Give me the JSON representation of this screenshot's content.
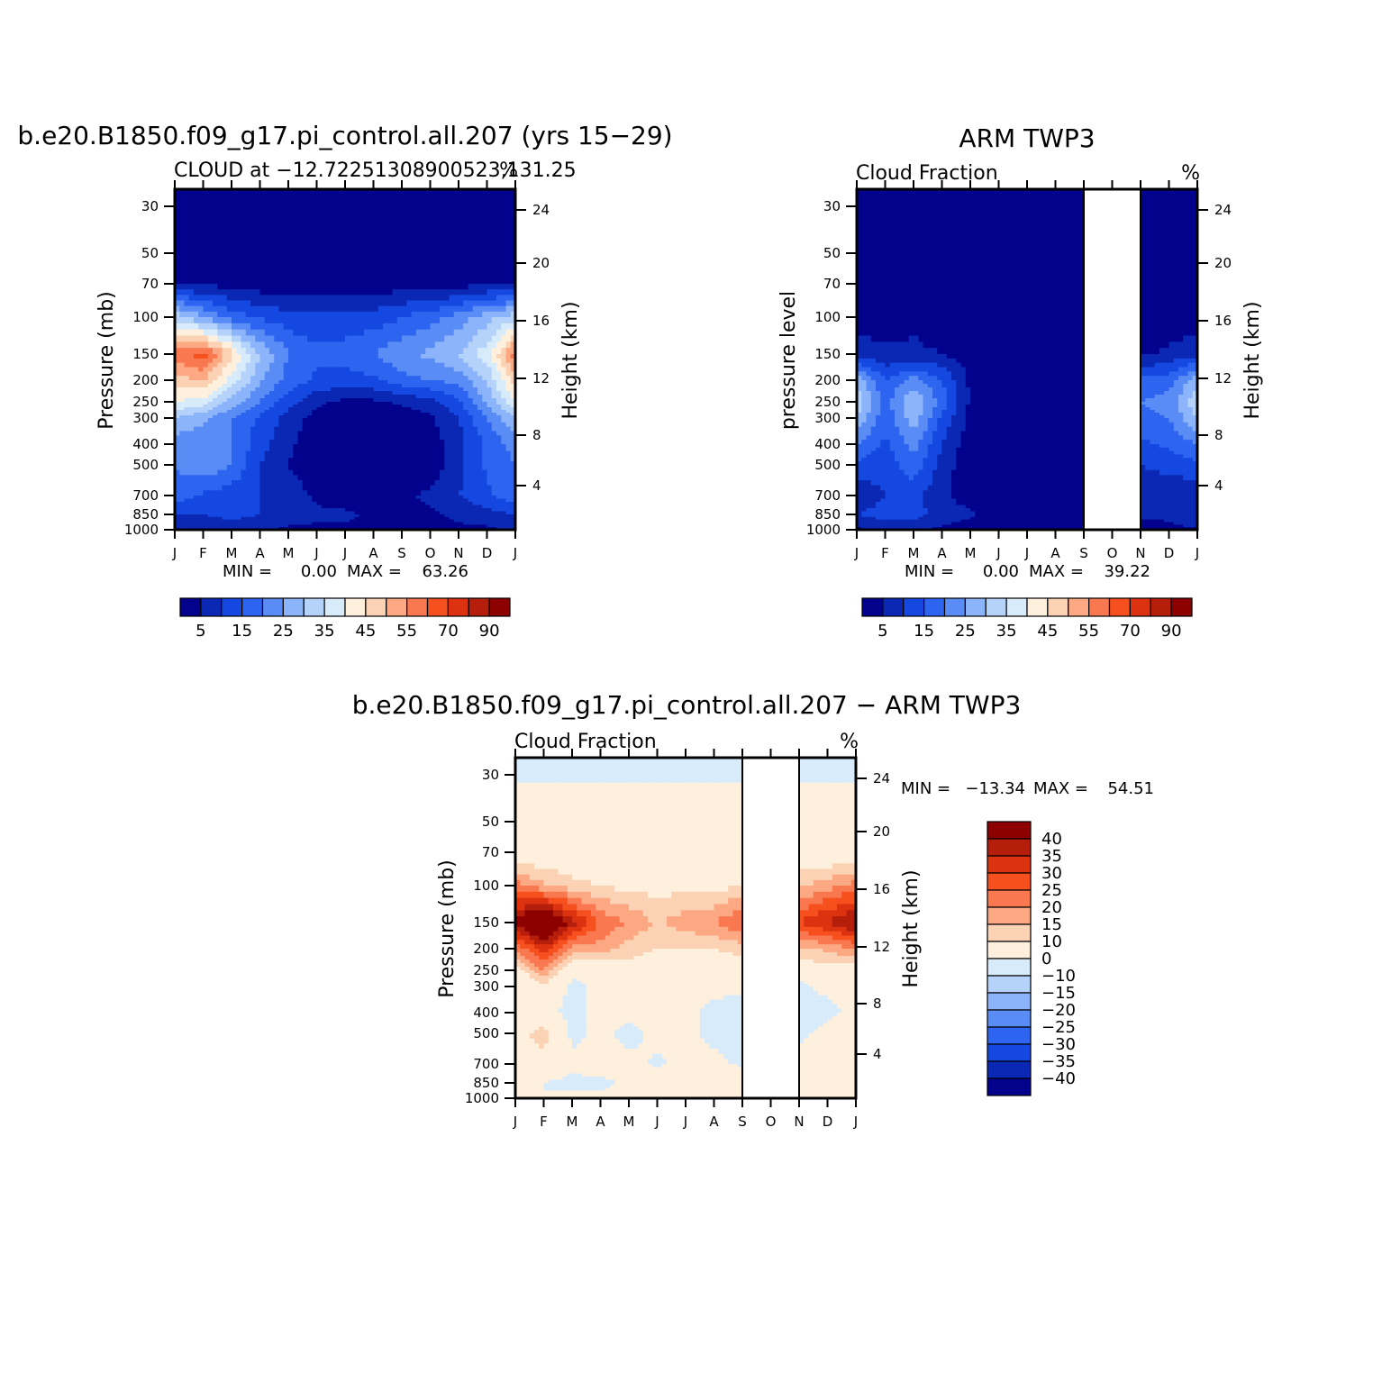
{
  "chart_data": [
    {
      "type": "heatmap",
      "title": "b.e20.B1850.f09_g17.pi_control.all.207 (yrs 15−29)",
      "subtitle_left": "CLOUD at −12.72251308900523,131.25",
      "subtitle_right": "%",
      "stats": {
        "min_label": "MIN =",
        "min": "0.00",
        "max_label": "MAX =",
        "max": "63.26"
      },
      "months": [
        "J",
        "F",
        "M",
        "A",
        "M",
        "J",
        "J",
        "A",
        "S",
        "O",
        "N",
        "D",
        "J"
      ],
      "pressure_ticks": [
        "30",
        "50",
        "70",
        "100",
        "150",
        "200",
        "250",
        "300",
        "400",
        "500",
        "700",
        "850",
        "1000"
      ],
      "height_ticks": [
        "24",
        "20",
        "16",
        "12",
        "8",
        "4"
      ],
      "ylabel": "Pressure (mb)",
      "ylabel_right": "Height (km)",
      "colorbar_labels": [
        "5",
        "15",
        "25",
        "35",
        "45",
        "55",
        "70",
        "90"
      ],
      "colors": [
        "#02028c",
        "#0a28b4",
        "#1448e0",
        "#2d64f0",
        "#5a8cf5",
        "#8cb4fa",
        "#b4d2fa",
        "#d7ebfa",
        "#fff0de",
        "#fcd2b4",
        "#fca882",
        "#fa7850",
        "#f5501e",
        "#dc3210",
        "#b41e0a",
        "#8c0000"
      ],
      "values": [
        [
          0,
          0,
          0,
          0,
          0,
          0,
          0,
          0,
          0,
          0,
          0,
          0,
          0
        ],
        [
          0,
          0,
          0,
          0,
          0,
          0,
          0,
          0,
          0,
          0,
          0,
          0,
          0
        ],
        [
          5,
          4,
          3,
          2,
          2,
          2,
          2,
          2,
          2,
          2,
          3,
          4,
          5
        ],
        [
          33,
          25,
          18,
          14,
          12,
          12,
          12,
          12,
          15,
          18,
          22,
          28,
          33
        ],
        [
          58,
          63,
          46,
          30,
          20,
          16,
          17,
          20,
          24,
          26,
          30,
          38,
          58
        ],
        [
          48,
          50,
          38,
          26,
          18,
          14,
          13,
          14,
          18,
          20,
          22,
          30,
          48
        ],
        [
          40,
          38,
          28,
          20,
          12,
          6,
          4,
          4,
          6,
          8,
          14,
          26,
          40
        ],
        [
          30,
          26,
          20,
          14,
          8,
          3,
          2,
          2,
          2,
          4,
          10,
          20,
          30
        ],
        [
          22,
          22,
          20,
          12,
          6,
          2,
          1,
          1,
          1,
          2,
          8,
          16,
          22
        ],
        [
          20,
          24,
          20,
          10,
          5,
          1,
          1,
          1,
          1,
          2,
          8,
          16,
          20
        ],
        [
          18,
          14,
          12,
          10,
          8,
          4,
          2,
          2,
          4,
          6,
          10,
          14,
          18
        ],
        [
          10,
          10,
          12,
          10,
          8,
          6,
          6,
          4,
          4,
          4,
          6,
          8,
          10
        ],
        [
          6,
          6,
          6,
          6,
          4,
          4,
          4,
          2,
          2,
          2,
          4,
          4,
          6
        ]
      ]
    },
    {
      "type": "heatmap",
      "title": "ARM TWP3",
      "subtitle_left": "Cloud Fraction",
      "subtitle_right": "%",
      "stats": {
        "min_label": "MIN =",
        "min": "0.00",
        "max_label": "MAX =",
        "max": "39.22"
      },
      "months": [
        "J",
        "F",
        "M",
        "A",
        "M",
        "J",
        "J",
        "A",
        "S",
        "O",
        "N",
        "D",
        "J"
      ],
      "pressure_ticks": [
        "30",
        "50",
        "70",
        "100",
        "150",
        "200",
        "250",
        "300",
        "400",
        "500",
        "700",
        "850",
        "1000"
      ],
      "height_ticks": [
        "24",
        "20",
        "16",
        "12",
        "8",
        "4"
      ],
      "ylabel": "pressure level",
      "ylabel_right": "Height (km)",
      "colorbar_labels": [
        "5",
        "15",
        "25",
        "35",
        "45",
        "55",
        "70",
        "90"
      ],
      "missing_months": [
        "S",
        "O"
      ],
      "values": [
        [
          0,
          0,
          0,
          0,
          0,
          0,
          0,
          0,
          0,
          0,
          0,
          0,
          0
        ],
        [
          0,
          0,
          0,
          0,
          0,
          0,
          0,
          0,
          0,
          0,
          0,
          0,
          0
        ],
        [
          0,
          0,
          0,
          0,
          0,
          0,
          0,
          0,
          0,
          0,
          0,
          0,
          0
        ],
        [
          2,
          2,
          4,
          2,
          0,
          0,
          0,
          0,
          0,
          0,
          0,
          2,
          2
        ],
        [
          8,
          6,
          6,
          5,
          2,
          0,
          0,
          0,
          0,
          0,
          4,
          6,
          8
        ],
        [
          28,
          15,
          22,
          15,
          4,
          0,
          0,
          0,
          0,
          0,
          16,
          18,
          28
        ],
        [
          34,
          18,
          30,
          18,
          4,
          0,
          0,
          0,
          0,
          0,
          20,
          22,
          34
        ],
        [
          30,
          16,
          28,
          14,
          3,
          0,
          0,
          0,
          0,
          0,
          18,
          20,
          30
        ],
        [
          20,
          14,
          22,
          10,
          2,
          0,
          0,
          0,
          0,
          0,
          14,
          16,
          20
        ],
        [
          14,
          12,
          18,
          8,
          1,
          0,
          0,
          0,
          0,
          0,
          10,
          12,
          14
        ],
        [
          6,
          10,
          12,
          6,
          2,
          0,
          0,
          0,
          0,
          0,
          6,
          6,
          6
        ],
        [
          10,
          12,
          12,
          8,
          6,
          2,
          0,
          0,
          0,
          0,
          6,
          6,
          10
        ],
        [
          4,
          6,
          6,
          4,
          2,
          0,
          0,
          0,
          0,
          0,
          2,
          4,
          4
        ]
      ]
    },
    {
      "type": "heatmap",
      "title": "b.e20.B1850.f09_g17.pi_control.all.207 − ARM TWP3",
      "subtitle_left": "Cloud Fraction",
      "subtitle_right": "%",
      "stats": {
        "min_label": "MIN =",
        "min": "−13.34",
        "max_label": "MAX =",
        "max": "54.51"
      },
      "months": [
        "J",
        "F",
        "M",
        "A",
        "M",
        "J",
        "J",
        "A",
        "S",
        "O",
        "N",
        "D",
        "J"
      ],
      "pressure_ticks": [
        "30",
        "50",
        "70",
        "100",
        "150",
        "200",
        "250",
        "300",
        "400",
        "500",
        "700",
        "850",
        "1000"
      ],
      "height_ticks": [
        "24",
        "20",
        "16",
        "12",
        "8",
        "4"
      ],
      "ylabel": "Pressure (mb)",
      "ylabel_right": "Height (km)",
      "colorbar_labels": [
        "40",
        "35",
        "30",
        "25",
        "20",
        "15",
        "10",
        "0",
        "−10",
        "−15",
        "−20",
        "−25",
        "−30",
        "−35",
        "−40"
      ],
      "colors": [
        "#8c0000",
        "#b41e0a",
        "#dc3210",
        "#f5501e",
        "#fa7850",
        "#fca882",
        "#fcd2b4",
        "#fff0de",
        "#d7ebfa",
        "#b4d2fa",
        "#8cb4fa",
        "#5a8cf5",
        "#2d64f0",
        "#1448e0",
        "#0a28b4",
        "#02028c"
      ],
      "missing_months": [
        "S",
        "O"
      ],
      "values": [
        [
          -1,
          -1,
          -1,
          -1,
          -1,
          -1,
          -1,
          -1,
          -1,
          -1,
          -1,
          -1,
          -1
        ],
        [
          3,
          3,
          3,
          3,
          3,
          3,
          3,
          3,
          3,
          3,
          3,
          3,
          3
        ],
        [
          4,
          4,
          4,
          4,
          4,
          4,
          4,
          4,
          4,
          4,
          4,
          4,
          4
        ],
        [
          22,
          16,
          12,
          10,
          8,
          8,
          8,
          8,
          10,
          10,
          14,
          18,
          22
        ],
        [
          42,
          54,
          38,
          24,
          20,
          14,
          18,
          20,
          26,
          26,
          30,
          36,
          42
        ],
        [
          20,
          34,
          18,
          18,
          12,
          10,
          10,
          10,
          12,
          12,
          14,
          16,
          20
        ],
        [
          6,
          20,
          2,
          4,
          8,
          5,
          4,
          4,
          6,
          6,
          4,
          8,
          6
        ],
        [
          0,
          8,
          -2,
          2,
          4,
          3,
          2,
          2,
          2,
          2,
          -2,
          2,
          0
        ],
        [
          2,
          2,
          -2,
          2,
          2,
          2,
          2,
          -2,
          -4,
          -4,
          -6,
          -2,
          2
        ],
        [
          6,
          14,
          -2,
          2,
          -2,
          2,
          2,
          -2,
          -4,
          -4,
          -2,
          2,
          6
        ],
        [
          4,
          6,
          2,
          4,
          2,
          -1,
          2,
          2,
          -1,
          -1,
          4,
          4,
          4
        ],
        [
          2,
          0,
          -2,
          -2,
          2,
          4,
          6,
          4,
          4,
          4,
          2,
          2,
          2
        ],
        [
          2,
          0,
          2,
          2,
          2,
          2,
          2,
          2,
          2,
          2,
          2,
          2,
          2
        ]
      ]
    }
  ]
}
